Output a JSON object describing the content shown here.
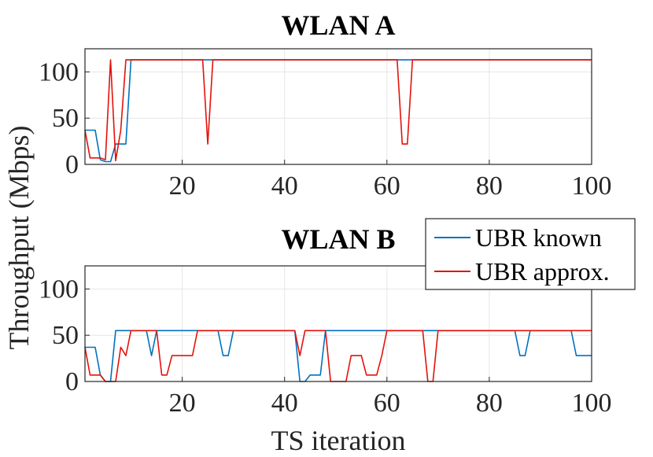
{
  "chart_data": {
    "type": "line",
    "ylabel": "Throughput (Mbps)",
    "xlabel": "TS iteration",
    "legend": {
      "placement": "upper-right-of-bottom-panel",
      "entries": [
        {
          "name": "UBR known",
          "color": "#0072BD"
        },
        {
          "name": "UBR approx.",
          "color": "#E3120B"
        }
      ]
    },
    "panels": [
      {
        "title": "WLAN A",
        "xlim": [
          1,
          100
        ],
        "ylim": [
          0,
          125
        ],
        "xticks": [
          20,
          40,
          60,
          80,
          100
        ],
        "yticks": [
          0,
          50,
          100
        ],
        "grid": true,
        "series": [
          {
            "name": "UBR known",
            "color": "#0072BD",
            "points": [
              [
                1,
                37
              ],
              [
                2,
                37
              ],
              [
                3,
                37
              ],
              [
                4,
                5
              ],
              [
                5,
                3
              ],
              [
                6,
                3
              ],
              [
                7,
                22
              ],
              [
                8,
                22
              ],
              [
                9,
                22
              ],
              [
                10,
                113
              ],
              [
                100,
                113
              ]
            ]
          },
          {
            "name": "UBR approx.",
            "color": "#E3120B",
            "points": [
              [
                1,
                37
              ],
              [
                2,
                7
              ],
              [
                3,
                7
              ],
              [
                4,
                7
              ],
              [
                5,
                5
              ],
              [
                6,
                113
              ],
              [
                7,
                4
              ],
              [
                8,
                37
              ],
              [
                9,
                113
              ],
              [
                24,
                113
              ],
              [
                25,
                22
              ],
              [
                26,
                113
              ],
              [
                62,
                113
              ],
              [
                63,
                22
              ],
              [
                64,
                22
              ],
              [
                65,
                113
              ],
              [
                100,
                113
              ]
            ]
          }
        ]
      },
      {
        "title": "WLAN B",
        "xlim": [
          1,
          100
        ],
        "ylim": [
          0,
          125
        ],
        "xticks": [
          20,
          40,
          60,
          80,
          100
        ],
        "yticks": [
          0,
          50,
          100
        ],
        "grid": true,
        "series": [
          {
            "name": "UBR known",
            "color": "#0072BD",
            "points": [
              [
                1,
                37
              ],
              [
                2,
                37
              ],
              [
                3,
                37
              ],
              [
                4,
                7
              ],
              [
                5,
                0
              ],
              [
                6,
                0
              ],
              [
                7,
                55
              ],
              [
                13,
                55
              ],
              [
                14,
                28
              ],
              [
                15,
                55
              ],
              [
                27,
                55
              ],
              [
                28,
                28
              ],
              [
                29,
                28
              ],
              [
                30,
                55
              ],
              [
                42,
                55
              ],
              [
                43,
                0
              ],
              [
                44,
                0
              ],
              [
                45,
                7
              ],
              [
                46,
                7
              ],
              [
                47,
                7
              ],
              [
                48,
                55
              ],
              [
                85,
                55
              ],
              [
                86,
                28
              ],
              [
                87,
                28
              ],
              [
                88,
                55
              ],
              [
                96,
                55
              ],
              [
                97,
                28
              ],
              [
                100,
                28
              ]
            ]
          },
          {
            "name": "UBR approx.",
            "color": "#E3120B",
            "points": [
              [
                1,
                37
              ],
              [
                2,
                7
              ],
              [
                3,
                7
              ],
              [
                4,
                7
              ],
              [
                5,
                0
              ],
              [
                6,
                0
              ],
              [
                7,
                0
              ],
              [
                8,
                37
              ],
              [
                9,
                28
              ],
              [
                10,
                55
              ],
              [
                15,
                55
              ],
              [
                16,
                7
              ],
              [
                17,
                7
              ],
              [
                18,
                28
              ],
              [
                22,
                28
              ],
              [
                23,
                55
              ],
              [
                42,
                55
              ],
              [
                43,
                28
              ],
              [
                44,
                55
              ],
              [
                48,
                55
              ],
              [
                49,
                0
              ],
              [
                52,
                0
              ],
              [
                53,
                28
              ],
              [
                55,
                28
              ],
              [
                56,
                7
              ],
              [
                58,
                7
              ],
              [
                59,
                28
              ],
              [
                60,
                55
              ],
              [
                67,
                55
              ],
              [
                68,
                0
              ],
              [
                69,
                0
              ],
              [
                70,
                55
              ],
              [
                100,
                55
              ]
            ]
          }
        ]
      }
    ]
  }
}
